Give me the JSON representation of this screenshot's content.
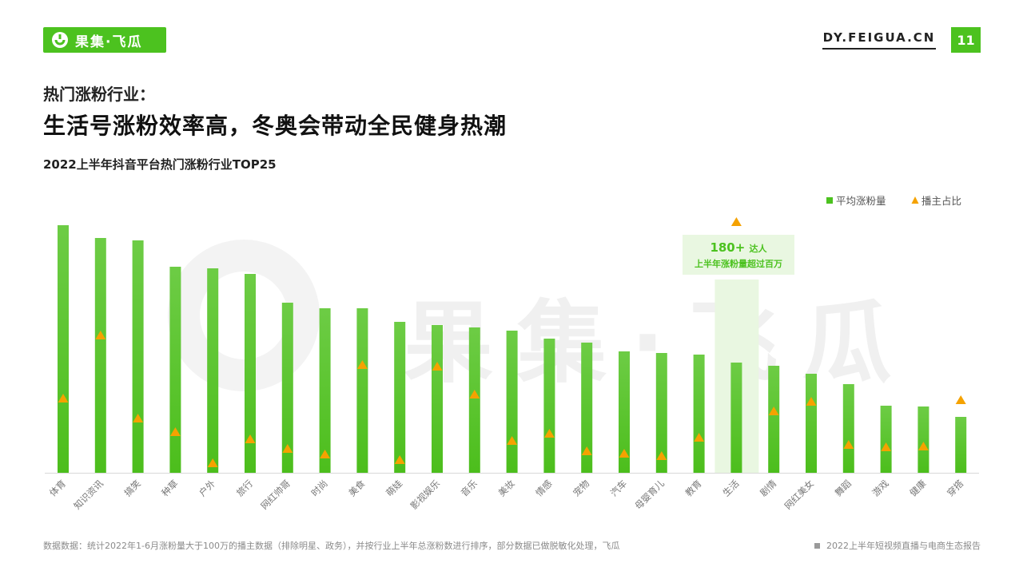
{
  "header": {
    "logo_text": "果集·飞瓜",
    "site_url": "DY.FEIGUA.CN",
    "page_number": "11"
  },
  "headline": {
    "subtitle": "热门涨粉行业：",
    "title": "生活号涨粉效率高，冬奥会带动全民健身热潮"
  },
  "chart_title": "2022上半年抖音平台热门涨粉行业TOP25",
  "watermark_text": "果集·飞瓜",
  "chart_data": {
    "type": "bar",
    "categories": [
      "体育",
      "知识资讯",
      "搞笑",
      "种草",
      "户外",
      "旅行",
      "网红帅哥",
      "时尚",
      "美食",
      "萌娃",
      "影视娱乐",
      "音乐",
      "美妆",
      "情感",
      "宠物",
      "汽车",
      "母婴育儿",
      "教育",
      "生活",
      "剧情",
      "网红美女",
      "舞蹈",
      "游戏",
      "健康",
      "穿搭"
    ],
    "series": [
      {
        "name": "平均涨粉量",
        "type": "bar",
        "values": [
          310,
          294,
          291,
          258,
          256,
          249,
          213,
          206,
          206,
          189,
          185,
          182,
          178,
          168,
          163,
          152,
          150,
          148,
          138,
          134,
          124,
          111,
          84,
          83,
          70
        ],
        "color": "#4cc21f"
      },
      {
        "name": "播主占比",
        "type": "marker",
        "values": [
          93,
          172,
          68,
          51,
          12,
          42,
          30,
          23,
          135,
          16,
          133,
          98,
          40,
          49,
          27,
          24,
          21,
          44,
          314,
          77,
          89,
          35,
          32,
          33,
          91
        ],
        "color": "#f5a200"
      }
    ],
    "ylim": [
      0,
      330
    ],
    "grid": false,
    "legend": "top-right",
    "highlight": {
      "category": "生活",
      "annotation_line1_value": "180+",
      "annotation_line1_unit": "达人",
      "annotation_line2": "上半年涨粉量超过百万"
    }
  },
  "footer": {
    "footnote": "数据数据：统计2022年1-6月涨粉量大于100万的播主数据（排除明星、政务），并按行业上半年总涨粉数进行排序，部分数据已做脱敏化处理，飞瓜",
    "report_name": "2022上半年短视频直播与电商生态报告"
  },
  "colors": {
    "brand_green": "#4cc21f",
    "marker_orange": "#f5a200",
    "highlight_bg": "#e9f7e1"
  }
}
